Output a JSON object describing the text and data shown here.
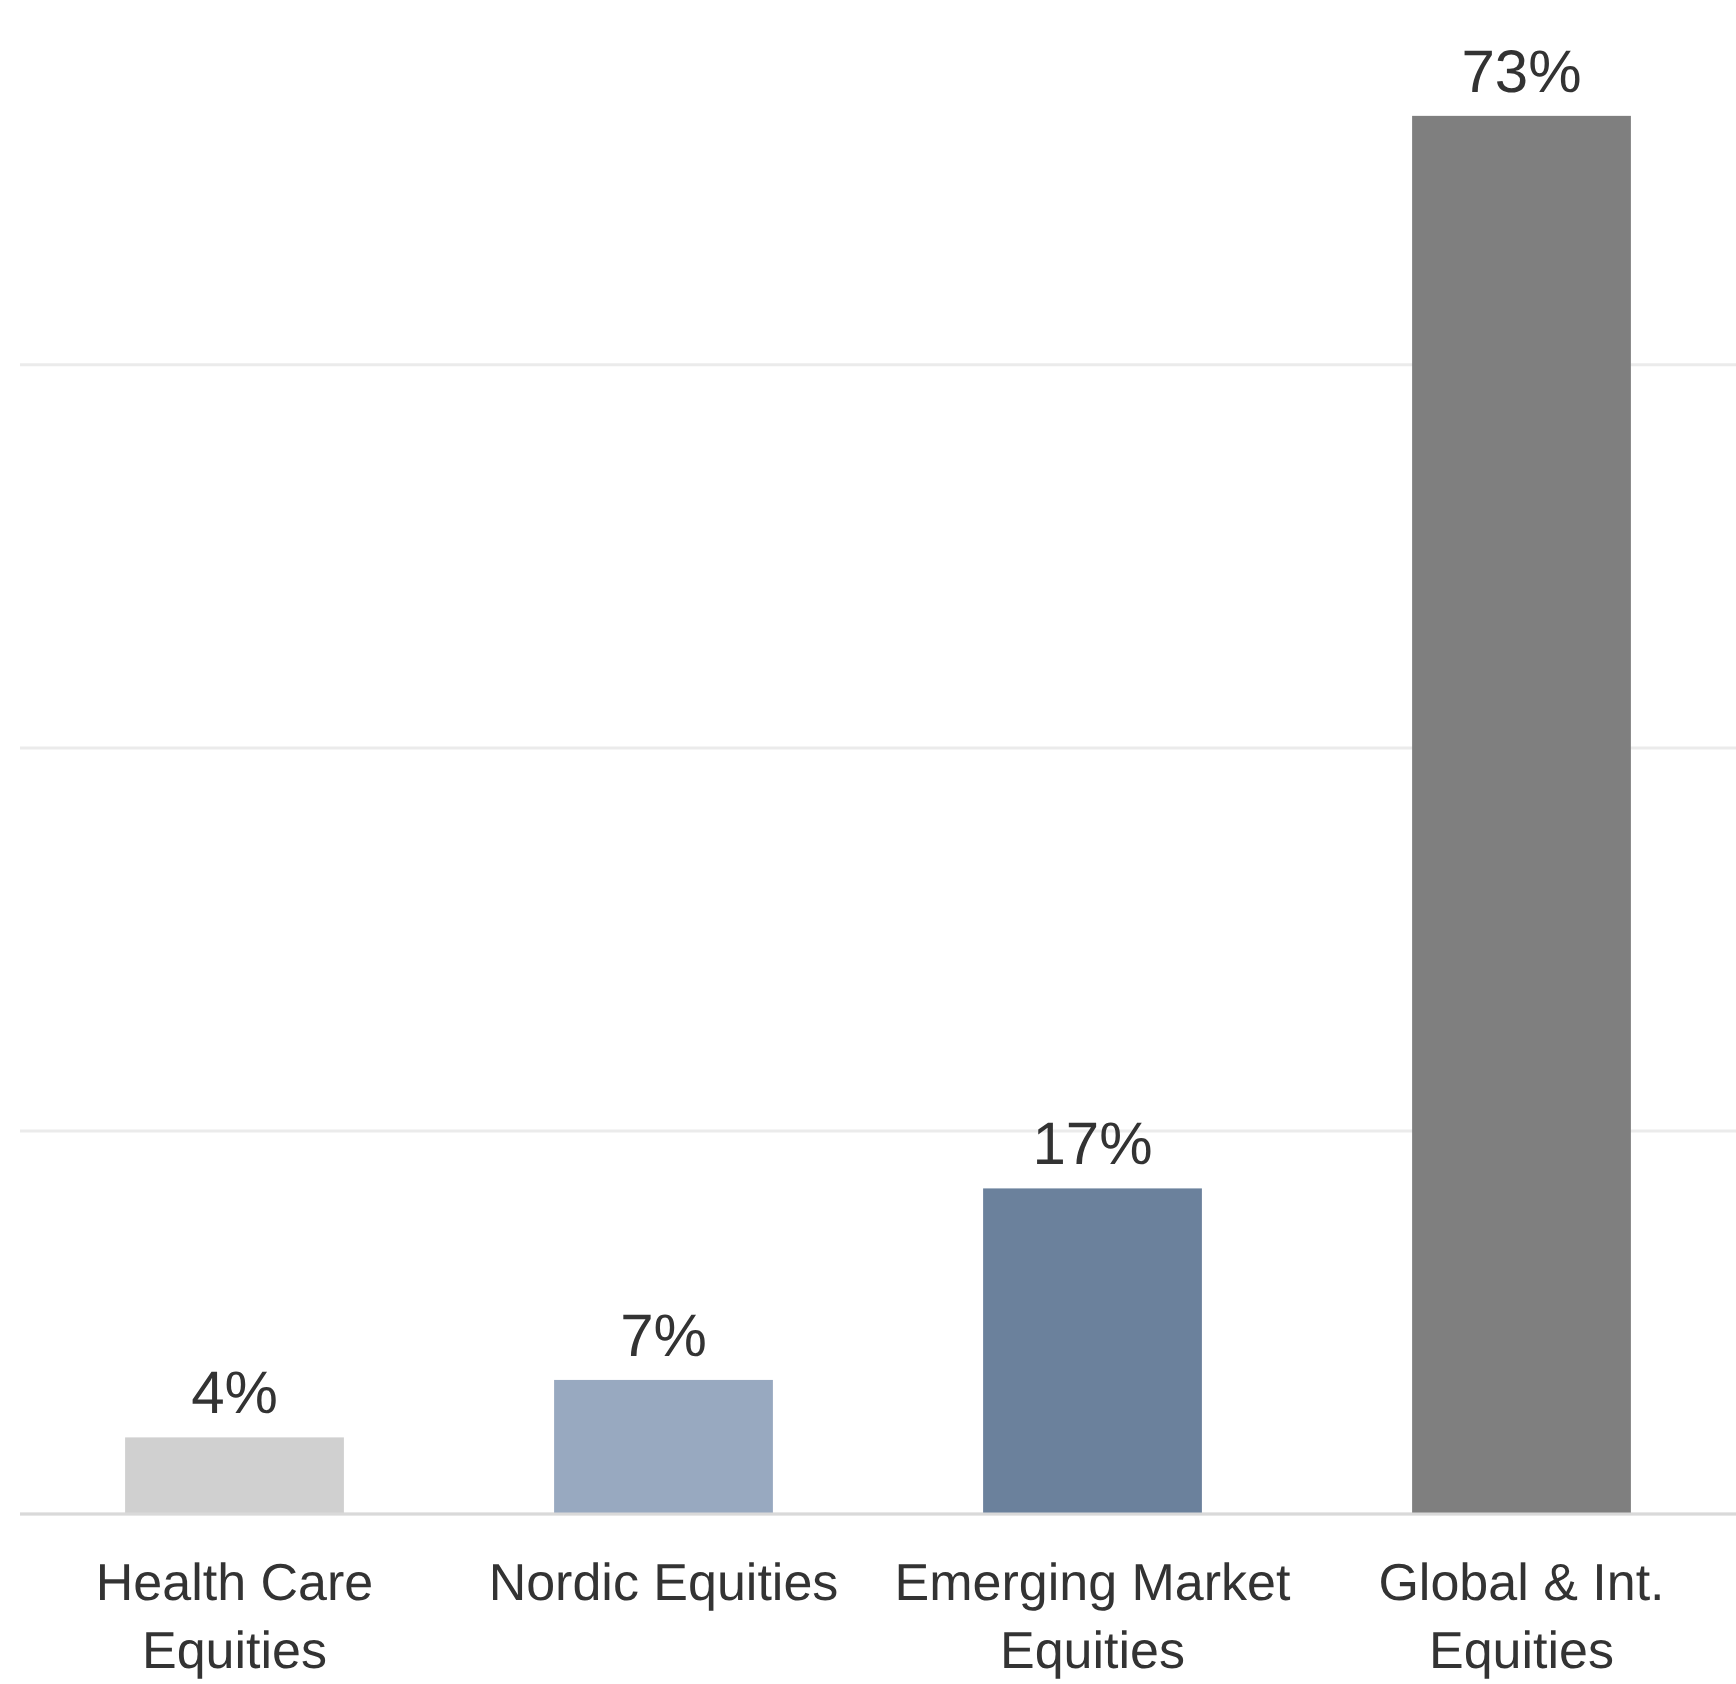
{
  "chart_data": {
    "type": "bar",
    "categories": [
      "Health Care Equities",
      "Nordic Equities",
      "Emerging Market Equities",
      "Global & Int. Equities"
    ],
    "values": [
      4,
      7,
      17,
      73
    ],
    "value_labels": [
      "4%",
      "7%",
      "17%",
      "73%"
    ],
    "colors": [
      "#d0d0d0",
      "#98a9c0",
      "#6b819c",
      "#7f7f7f"
    ],
    "tick_labels": "x",
    "grid": "y"
  }
}
